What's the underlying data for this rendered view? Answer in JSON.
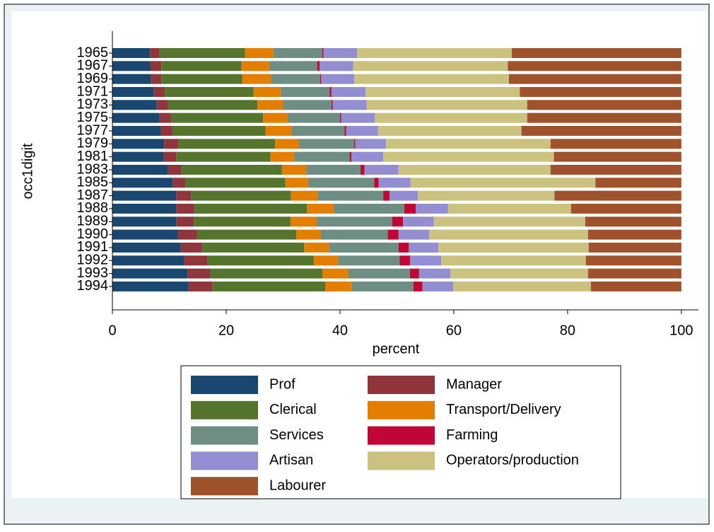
{
  "chart_data": {
    "type": "stacked-barh",
    "ylabel": "occ1digit",
    "xlabel": "percent",
    "categories": [
      "1965",
      "1967",
      "1969",
      "1971",
      "1973",
      "1975",
      "1977",
      "1979",
      "1981",
      "1983",
      "1985",
      "1987",
      "1988",
      "1989",
      "1990",
      "1991",
      "1992",
      "1993",
      "1994"
    ],
    "series": [
      {
        "name": "Prof",
        "color": "#1a476f",
        "values": [
          6.6,
          6.7,
          6.8,
          7.3,
          7.8,
          8.3,
          8.5,
          9.1,
          9.0,
          9.8,
          10.6,
          11.2,
          11.2,
          11.2,
          11.5,
          12.0,
          12.6,
          13.2,
          13.4
        ]
      },
      {
        "name": "Manager",
        "color": "#90353b",
        "values": [
          1.7,
          1.9,
          1.8,
          1.9,
          2.0,
          2.0,
          2.0,
          2.5,
          2.2,
          2.3,
          2.2,
          2.6,
          3.2,
          3.1,
          3.4,
          3.8,
          4.1,
          4.0,
          4.2
        ]
      },
      {
        "name": "Clerical",
        "color": "#55752f",
        "values": [
          15.0,
          14.1,
          14.2,
          15.6,
          15.7,
          16.2,
          16.4,
          17.0,
          16.6,
          17.7,
          17.6,
          17.6,
          19.8,
          17.0,
          17.4,
          17.9,
          18.7,
          19.7,
          19.8
        ]
      },
      {
        "name": "Transport/Delivery",
        "color": "#e37e00",
        "values": [
          5.0,
          4.9,
          5.1,
          4.8,
          4.5,
          4.3,
          4.6,
          4.2,
          4.2,
          4.3,
          4.0,
          4.7,
          4.7,
          4.6,
          4.3,
          4.4,
          4.3,
          4.6,
          4.7
        ]
      },
      {
        "name": "Services",
        "color": "#6e8e84",
        "values": [
          8.6,
          8.4,
          8.6,
          8.6,
          8.5,
          9.2,
          9.3,
          9.7,
          9.7,
          9.5,
          11.6,
          11.5,
          12.4,
          13.3,
          11.8,
          12.2,
          10.8,
          10.8,
          10.8
        ]
      },
      {
        "name": "Farming",
        "color": "#c10534",
        "values": [
          0.2,
          0.4,
          0.2,
          0.3,
          0.2,
          0.2,
          0.3,
          0.2,
          0.3,
          0.7,
          0.8,
          1.1,
          2.0,
          1.9,
          1.9,
          1.8,
          1.8,
          1.6,
          1.6
        ]
      },
      {
        "name": "Artisan",
        "color": "#938dd2",
        "values": [
          5.9,
          5.9,
          5.8,
          6.0,
          6.0,
          5.9,
          5.6,
          5.4,
          5.6,
          6.0,
          5.6,
          5.0,
          5.7,
          5.4,
          5.4,
          5.2,
          5.5,
          5.5,
          5.4
        ]
      },
      {
        "name": "Operators/production",
        "color": "#cac27e",
        "values": [
          27.2,
          27.2,
          27.2,
          27.1,
          28.2,
          26.8,
          25.2,
          28.9,
          30.0,
          26.7,
          32.5,
          24.0,
          21.6,
          26.6,
          27.9,
          26.4,
          25.4,
          24.2,
          24.2
        ]
      },
      {
        "name": "Labourer",
        "color": "#a0522d",
        "values": [
          29.8,
          30.5,
          30.3,
          28.4,
          27.1,
          27.1,
          28.1,
          23.0,
          22.4,
          23.0,
          15.1,
          22.3,
          19.4,
          16.9,
          16.4,
          16.3,
          16.8,
          16.4,
          15.9
        ]
      }
    ],
    "xlim": [
      0,
      103
    ],
    "xticks": [
      0,
      20,
      40,
      60,
      80,
      100
    ]
  }
}
